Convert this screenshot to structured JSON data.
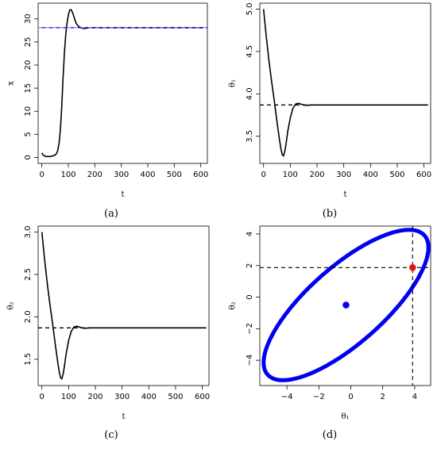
{
  "chart_data": [
    {
      "type": "line",
      "caption": "(a)",
      "xlabel": "t",
      "ylabel": "x",
      "xlim": [
        -14,
        625
      ],
      "ylim": [
        -1.3,
        33.4
      ],
      "xticks": [
        "0",
        "100",
        "200",
        "300",
        "400",
        "500",
        "600"
      ],
      "yticks": [
        "0",
        "5",
        "10",
        "15",
        "20",
        "25",
        "30"
      ],
      "series": [
        {
          "color": "#000000",
          "style": "solid",
          "x": [
            0,
            5,
            10,
            20,
            30,
            40,
            50,
            55,
            60,
            65,
            70,
            75,
            80,
            85,
            90,
            95,
            100,
            105,
            110,
            115,
            120,
            125,
            130,
            140,
            150,
            160,
            170,
            180,
            200,
            250,
            300,
            400,
            500,
            610
          ],
          "y": [
            1.0,
            0.5,
            0.3,
            0.2,
            0.2,
            0.3,
            0.5,
            0.8,
            1.5,
            3.0,
            6.0,
            11.0,
            17.0,
            22.5,
            26.5,
            29.0,
            30.8,
            31.9,
            32.0,
            31.5,
            30.7,
            29.8,
            29.0,
            28.3,
            28.0,
            27.9,
            28.0,
            28.1,
            28.1,
            28.1,
            28.1,
            28.1,
            28.1,
            28.1
          ]
        },
        {
          "color": "#0000cc",
          "style": "solid",
          "x": [
            -14,
            625
          ],
          "y": [
            28.1,
            28.1
          ]
        },
        {
          "color": "#9999ff",
          "style": "dashed",
          "x": [
            -14,
            625
          ],
          "y": [
            28.1,
            28.1
          ]
        }
      ]
    },
    {
      "type": "line",
      "caption": "(b)",
      "xlabel": "t",
      "ylabel": "θ₁",
      "xlim": [
        -14,
        625
      ],
      "ylim": [
        3.18,
        5.07
      ],
      "xticks": [
        "0",
        "100",
        "200",
        "300",
        "400",
        "500",
        "600"
      ],
      "yticks": [
        "3.5",
        "4.0",
        "4.5",
        "5.0"
      ],
      "series": [
        {
          "color": "#000000",
          "style": "solid",
          "x": [
            0,
            10,
            20,
            30,
            40,
            50,
            60,
            65,
            70,
            75,
            80,
            85,
            90,
            100,
            110,
            120,
            130,
            140,
            150,
            160,
            180,
            200,
            300,
            400,
            500,
            610
          ],
          "y": [
            5.0,
            4.68,
            4.4,
            4.15,
            3.92,
            3.68,
            3.45,
            3.35,
            3.28,
            3.27,
            3.33,
            3.43,
            3.55,
            3.72,
            3.83,
            3.88,
            3.89,
            3.88,
            3.87,
            3.865,
            3.87,
            3.87,
            3.87,
            3.87,
            3.87,
            3.87
          ]
        },
        {
          "color": "#000000",
          "style": "dashed",
          "x": [
            -14,
            625
          ],
          "y": [
            3.87,
            3.87
          ]
        }
      ]
    },
    {
      "type": "line",
      "caption": "(c)",
      "xlabel": "t",
      "ylabel": "θ₂",
      "xlim": [
        -14,
        625
      ],
      "ylim": [
        1.19,
        3.07
      ],
      "xticks": [
        "0",
        "100",
        "200",
        "300",
        "400",
        "500",
        "600"
      ],
      "yticks": [
        "1.5",
        "2.0",
        "2.5",
        "3.0"
      ],
      "series": [
        {
          "color": "#000000",
          "style": "solid",
          "x": [
            0,
            10,
            20,
            30,
            40,
            50,
            60,
            65,
            70,
            75,
            80,
            85,
            90,
            100,
            110,
            120,
            130,
            140,
            150,
            160,
            180,
            200,
            300,
            400,
            500,
            610
          ],
          "y": [
            3.0,
            2.68,
            2.4,
            2.15,
            1.92,
            1.68,
            1.45,
            1.35,
            1.28,
            1.27,
            1.33,
            1.43,
            1.55,
            1.72,
            1.83,
            1.88,
            1.89,
            1.88,
            1.87,
            1.865,
            1.87,
            1.87,
            1.87,
            1.87,
            1.87,
            1.87
          ]
        },
        {
          "color": "#000000",
          "style": "dashed",
          "x": [
            -14,
            625
          ],
          "y": [
            1.87,
            1.87
          ]
        }
      ]
    },
    {
      "type": "scatter",
      "caption": "(d)",
      "xlabel": "θ₁",
      "ylabel": "θ₂",
      "xlim": [
        -5.7,
        5.0
      ],
      "ylim": [
        -5.6,
        4.5
      ],
      "xticks": [
        "−4",
        "−2",
        "0",
        "2",
        "4"
      ],
      "yticks": [
        "−4",
        "−2",
        "0",
        "2",
        "4"
      ],
      "ellipse": {
        "center": [
          -0.3,
          -0.5
        ],
        "semi_major": 6.6,
        "semi_minor": 2.4,
        "angle_deg": 42,
        "color": "#0000ee"
      },
      "points": [
        {
          "x": -0.3,
          "y": -0.5,
          "color": "#0000ee"
        },
        {
          "x": 3.87,
          "y": 1.87,
          "color": "#ee1111"
        }
      ],
      "guides": {
        "x": 3.87,
        "y": 1.87,
        "style": "dashed",
        "color": "#000000"
      }
    }
  ]
}
